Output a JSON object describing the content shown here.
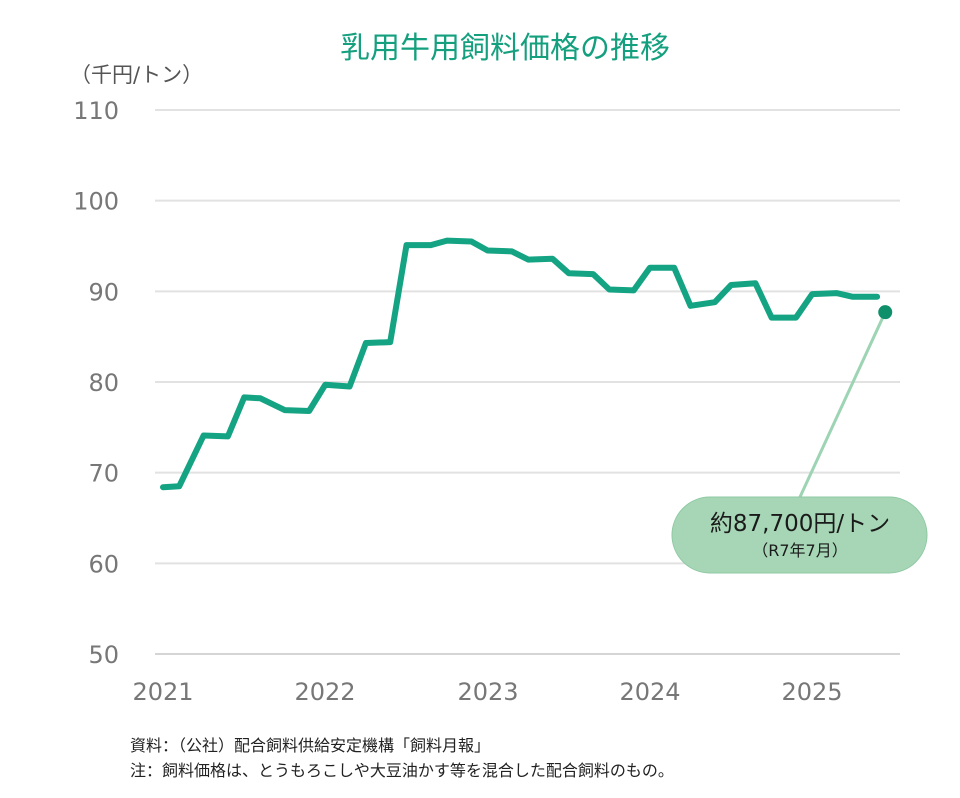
{
  "chart_data": {
    "type": "line",
    "title": "乳用牛用飼料価格の推移",
    "ylabel": "（千円/トン）",
    "xlabel": "",
    "ylim": [
      50,
      110
    ],
    "yticks": [
      110,
      100,
      90,
      80,
      70,
      60,
      50
    ],
    "xticks": [
      "2021",
      "2022",
      "2023",
      "2024",
      "2025"
    ],
    "grid": true,
    "colors": {
      "line": "#14a383",
      "title": "#14a07e",
      "callout": "#a6d6b5",
      "endpoint": "#0f8f6a"
    },
    "series": [
      {
        "x": [
          2021.0,
          2021.1,
          2021.25,
          2021.4,
          2021.5,
          2021.6,
          2021.75,
          2021.9,
          2022.0,
          2022.15,
          2022.25,
          2022.4,
          2022.5,
          2022.65,
          2022.75,
          2022.9,
          2023.0,
          2023.15,
          2023.25,
          2023.4,
          2023.5,
          2023.65,
          2023.75,
          2023.9,
          2024.0,
          2024.15,
          2024.25,
          2024.4,
          2024.5,
          2024.65,
          2024.75,
          2024.9,
          2025.0,
          2025.15,
          2025.25,
          2025.4
        ],
        "values": [
          68.4,
          68.5,
          74.1,
          74.0,
          78.3,
          78.2,
          76.9,
          76.8,
          79.7,
          79.5,
          84.3,
          84.4,
          95.1,
          95.1,
          95.6,
          95.5,
          94.5,
          94.4,
          93.5,
          93.6,
          92.0,
          91.9,
          90.2,
          90.1,
          92.6,
          92.6,
          88.4,
          88.8,
          90.7,
          90.9,
          87.1,
          87.1,
          89.7,
          89.8,
          89.4,
          89.4
        ]
      }
    ],
    "endpoint": {
      "x": 2025.45,
      "value": 87.7
    },
    "annotation": {
      "main": "約87,700円/トン",
      "sub": "（R7年7月）"
    }
  },
  "notes": {
    "source": "資料：（公社）配合飼料供給安定機構「飼料月報」",
    "note": "注：飼料価格は、とうもろこしや大豆油かす等を混合した配合飼料のもの。"
  }
}
